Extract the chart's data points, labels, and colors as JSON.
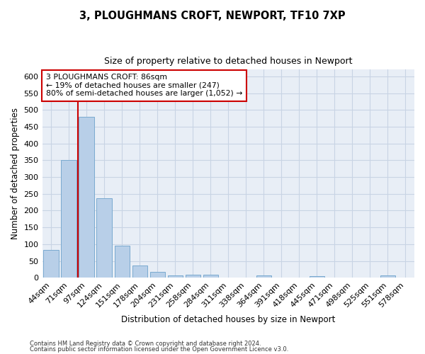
{
  "title1": "3, PLOUGHMANS CROFT, NEWPORT, TF10 7XP",
  "title2": "Size of property relative to detached houses in Newport",
  "xlabel": "Distribution of detached houses by size in Newport",
  "ylabel": "Number of detached properties",
  "categories": [
    "44sqm",
    "71sqm",
    "97sqm",
    "124sqm",
    "151sqm",
    "178sqm",
    "204sqm",
    "231sqm",
    "258sqm",
    "284sqm",
    "311sqm",
    "338sqm",
    "364sqm",
    "391sqm",
    "418sqm",
    "445sqm",
    "471sqm",
    "498sqm",
    "525sqm",
    "551sqm",
    "578sqm"
  ],
  "values": [
    83,
    350,
    480,
    236,
    96,
    37,
    17,
    8,
    9,
    9,
    0,
    0,
    7,
    0,
    0,
    5,
    0,
    0,
    0,
    6,
    0
  ],
  "bar_color": "#b8cfe8",
  "bar_edge_color": "#7aaad0",
  "grid_color": "#c8d4e4",
  "bg_color": "#e8eef6",
  "vline_color": "#cc0000",
  "vline_x_index": 2,
  "annotation_text": "3 PLOUGHMANS CROFT: 86sqm\n← 19% of detached houses are smaller (247)\n80% of semi-detached houses are larger (1,052) →",
  "annotation_box_color": "#cc0000",
  "ylim": [
    0,
    620
  ],
  "yticks": [
    0,
    50,
    100,
    150,
    200,
    250,
    300,
    350,
    400,
    450,
    500,
    550,
    600
  ],
  "footer1": "Contains HM Land Registry data © Crown copyright and database right 2024.",
  "footer2": "Contains public sector information licensed under the Open Government Licence v3.0."
}
